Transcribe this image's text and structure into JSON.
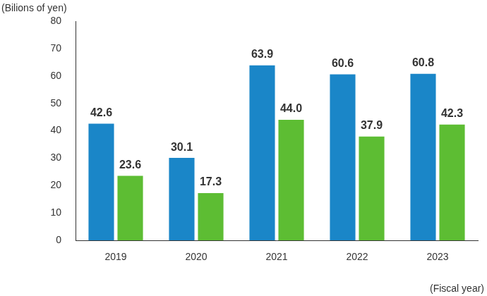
{
  "chart_data": {
    "type": "bar",
    "y_label": "(Bilions of yen)",
    "x_label": "(Fiscal year)",
    "categories": [
      "2019",
      "2020",
      "2021",
      "2022",
      "2023"
    ],
    "series": [
      {
        "color": "#1a86c8",
        "values": [
          42.6,
          30.1,
          63.9,
          60.6,
          60.8
        ],
        "value_labels": [
          "42.6",
          "30.1",
          "63.9",
          "60.6",
          "60.8"
        ]
      },
      {
        "color": "#5dbd33",
        "values": [
          23.6,
          17.3,
          44.0,
          37.9,
          42.3
        ],
        "value_labels": [
          "23.6",
          "17.3",
          "44.0",
          "37.9",
          "42.3"
        ]
      }
    ],
    "ylim": [
      0,
      80
    ],
    "yticks": [
      0,
      10,
      20,
      30,
      40,
      50,
      60,
      70,
      80
    ],
    "grid": false,
    "data_labels": true
  }
}
